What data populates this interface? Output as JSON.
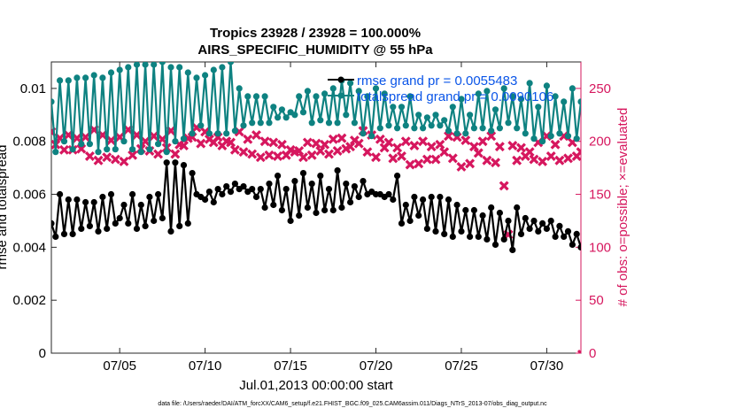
{
  "chart_data": {
    "type": "line",
    "title_line1": "Tropics 23928 / 23928 = 100.000%",
    "title_line2": "AIRS_SPECIFIC_HUMIDITY @ 55 hPa",
    "xlabel": "Jul.01,2013 00:00:00 start",
    "ylabel_left": "rmse and totalspread",
    "ylabel_right": "# of obs: o=possible; ×=evaluated",
    "footnote": "data file: /Users/raeder/DAI/ATM_forcXX/CAM6_setup/f.e21.FHIST_BGC.f09_025.CAM6assim.011/Diags_NTrS_2013-07/obs_diag_output.nc",
    "xlim": [
      1.0,
      32.0
    ],
    "ylim_left": [
      0,
      0.011
    ],
    "ylim_right": [
      0,
      275
    ],
    "x_ticks": [
      5,
      10,
      15,
      20,
      25,
      30
    ],
    "x_tick_labels": [
      "07/05",
      "07/10",
      "07/15",
      "07/20",
      "07/25",
      "07/30"
    ],
    "y_left_ticks": [
      0,
      0.002,
      0.004,
      0.006,
      0.008,
      0.01
    ],
    "y_left_tick_labels": [
      "0",
      "0.002",
      "0.004",
      "0.006",
      "0.008",
      "0.01"
    ],
    "y_right_ticks": [
      0,
      50,
      100,
      150,
      200,
      250
    ],
    "y_right_tick_labels": [
      "0",
      "50",
      "100",
      "150",
      "200",
      "250"
    ],
    "colors": {
      "rmse": "#000000",
      "spread": "#0e8281",
      "obs": "#d6175e",
      "legend_text": "#0a55e8"
    },
    "legend": [
      {
        "name": "rmse",
        "label": "rmse grand pr = 0.0055483"
      },
      {
        "name": "totalspread",
        "label": "totalspread grand pr = 0.0090106"
      }
    ],
    "x_start": 1.0,
    "x_step": 0.25,
    "series": [
      {
        "name": "rmse",
        "axis": "left",
        "marker": "dot",
        "values": [
          0.0049,
          0.0044,
          0.006,
          0.0045,
          0.0058,
          0.0045,
          0.0058,
          0.0047,
          0.0057,
          0.0048,
          0.0057,
          0.0046,
          0.0059,
          0.0047,
          0.006,
          0.0049,
          0.0051,
          0.0056,
          0.0049,
          0.006,
          0.0047,
          0.0056,
          0.0048,
          0.0059,
          0.005,
          0.006,
          0.0051,
          0.0072,
          0.0046,
          0.0072,
          0.0048,
          0.0071,
          0.0049,
          0.0068,
          0.006,
          0.0059,
          0.0058,
          0.0061,
          0.0057,
          0.0062,
          0.006,
          0.0063,
          0.0061,
          0.0064,
          0.0062,
          0.0063,
          0.0061,
          0.0062,
          0.0059,
          0.0062,
          0.0055,
          0.0064,
          0.0056,
          0.0067,
          0.0054,
          0.0062,
          0.005,
          0.0065,
          0.0052,
          0.0068,
          0.0055,
          0.0064,
          0.0053,
          0.0067,
          0.0054,
          0.0062,
          0.0054,
          0.0069,
          0.0055,
          0.0064,
          0.0057,
          0.0063,
          0.0059,
          0.0065,
          0.006,
          0.0061,
          0.006,
          0.006,
          0.0059,
          0.006,
          0.0058,
          0.0067,
          0.0049,
          0.0056,
          0.005,
          0.0059,
          0.0052,
          0.0058,
          0.0047,
          0.0059,
          0.0046,
          0.0059,
          0.0045,
          0.0058,
          0.0044,
          0.0056,
          0.0046,
          0.0054,
          0.0044,
          0.0054,
          0.0044,
          0.0052,
          0.0043,
          0.0055,
          0.0041,
          0.0053,
          0.0043,
          0.005,
          0.0039,
          0.0055,
          0.0045,
          0.0051,
          0.0047,
          0.005,
          0.0046,
          0.0049,
          0.0047,
          0.005,
          0.0044,
          0.0048,
          0.0044,
          0.0046,
          0.0041,
          0.0045,
          0.004,
          0.0042
        ]
      },
      {
        "name": "totalspread",
        "axis": "left",
        "marker": "dot",
        "values": [
          0.0095,
          0.0076,
          0.0103,
          0.008,
          0.0103,
          0.0077,
          0.0104,
          0.0079,
          0.0104,
          0.0079,
          0.0105,
          0.0076,
          0.0104,
          0.0077,
          0.0106,
          0.0077,
          0.0107,
          0.008,
          0.0108,
          0.0077,
          0.0109,
          0.0076,
          0.0109,
          0.0077,
          0.0109,
          0.0079,
          0.011,
          0.0076,
          0.0108,
          0.008,
          0.0108,
          0.0081,
          0.0106,
          0.0083,
          0.0104,
          0.0086,
          0.0105,
          0.0083,
          0.0107,
          0.0083,
          0.0108,
          0.0083,
          0.011,
          0.0084,
          0.01,
          0.0086,
          0.0097,
          0.0087,
          0.0097,
          0.0087,
          0.0097,
          0.0087,
          0.0093,
          0.0089,
          0.0092,
          0.0089,
          0.0091,
          0.009,
          0.0097,
          0.0091,
          0.0099,
          0.0087,
          0.0097,
          0.0088,
          0.0098,
          0.0087,
          0.01,
          0.0087,
          0.0103,
          0.009,
          0.0102,
          0.0087,
          0.0099,
          0.0083,
          0.0097,
          0.0082,
          0.01,
          0.0085,
          0.0098,
          0.0086,
          0.0093,
          0.0085,
          0.0093,
          0.0086,
          0.0097,
          0.0085,
          0.009,
          0.0085,
          0.0089,
          0.0086,
          0.009,
          0.0086,
          0.0088,
          0.0084,
          0.0093,
          0.0083,
          0.0096,
          0.0083,
          0.009,
          0.0085,
          0.0098,
          0.0085,
          0.0099,
          0.0084,
          0.0092,
          0.0085,
          0.01,
          0.0087,
          0.0097,
          0.0085,
          0.0096,
          0.0083,
          0.0102,
          0.0081,
          0.0093,
          0.008,
          0.0101,
          0.0082,
          0.0097,
          0.0083,
          0.0095,
          0.0082,
          0.01,
          0.0081,
          0.0095,
          0.0088
        ]
      },
      {
        "name": "obs",
        "axis": "right",
        "marker": "x",
        "values": [
          209,
          197,
          203,
          192,
          206,
          192,
          203,
          193,
          204,
          186,
          211,
          182,
          206,
          185,
          201,
          183,
          204,
          181,
          211,
          187,
          206,
          193,
          200,
          191,
          205,
          188,
          202,
          194,
          210,
          188,
          197,
          196,
          203,
          204,
          213,
          198,
          209,
          202,
          199,
          204,
          196,
          200,
          199,
          192,
          209,
          190,
          202,
          188,
          206,
          185,
          200,
          187,
          199,
          186,
          197,
          187,
          192,
          190,
          191,
          185,
          199,
          187,
          198,
          191,
          197,
          188,
          202,
          191,
          203,
          193,
          195,
          201,
          198,
          210,
          190,
          206,
          185,
          202,
          194,
          199,
          184,
          194,
          186,
          200,
          178,
          196,
          179,
          200,
          183,
          195,
          183,
          197,
          190,
          205,
          184,
          204,
          176,
          201,
          179,
          195,
          189,
          200,
          182,
          205,
          180,
          195,
          158,
          112,
          196,
          182,
          194,
          186,
          190,
          183,
          199,
          181,
          205,
          186,
          197,
          182,
          205,
          184,
          199,
          186,
          190,
          191
        ]
      }
    ]
  }
}
